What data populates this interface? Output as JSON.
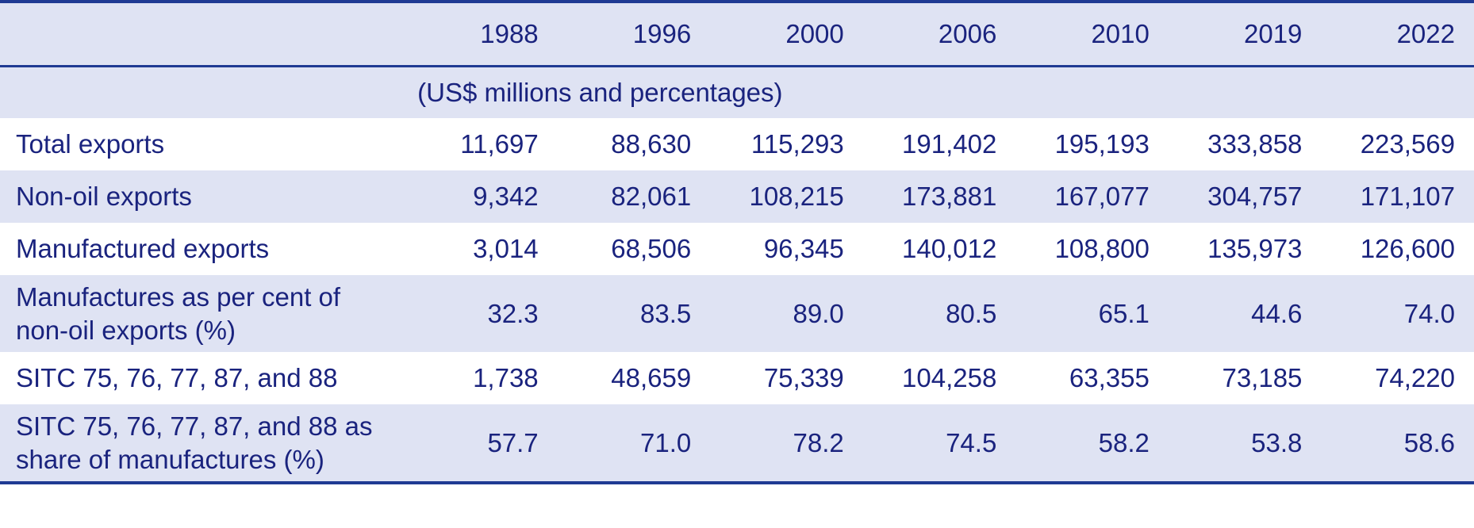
{
  "table": {
    "header_label": "",
    "years": [
      "1988",
      "1996",
      "2000",
      "2006",
      "2010",
      "2019",
      "2022"
    ],
    "unit_note": "(US$ millions and percentages)",
    "rows": [
      {
        "label": "Total exports",
        "values": [
          "11,697",
          "88,630",
          "115,293",
          "191,402",
          "195,193",
          "333,858",
          "223,569"
        ]
      },
      {
        "label": "Non-oil exports",
        "values": [
          "9,342",
          "82,061",
          "108,215",
          "173,881",
          "167,077",
          "304,757",
          "171,107"
        ]
      },
      {
        "label": "Manufactured exports",
        "values": [
          "3,014",
          "68,506",
          "96,345",
          "140,012",
          "108,800",
          "135,973",
          "126,600"
        ]
      },
      {
        "label_line1": "Manufactures as per cent of",
        "label_line2": "non-oil exports (%)",
        "values": [
          "32.3",
          "83.5",
          "89.0",
          "80.5",
          "65.1",
          "44.6",
          "74.0"
        ]
      },
      {
        "label": "SITC 75, 76, 77, 87, and 88",
        "values": [
          "1,738",
          "48,659",
          "75,339",
          "104,258",
          "63,355",
          "73,185",
          "74,220"
        ]
      },
      {
        "label_line1": "SITC 75, 76, 77, 87, and 88 as",
        "label_line2": "share of manufactures (%)",
        "values": [
          "57.7",
          "71.0",
          "78.2",
          "74.5",
          "58.2",
          "53.8",
          "58.6"
        ]
      }
    ]
  },
  "colors": {
    "text": "#1a237e",
    "shade": "#dfe3f3",
    "rule": "#1f3a93"
  }
}
